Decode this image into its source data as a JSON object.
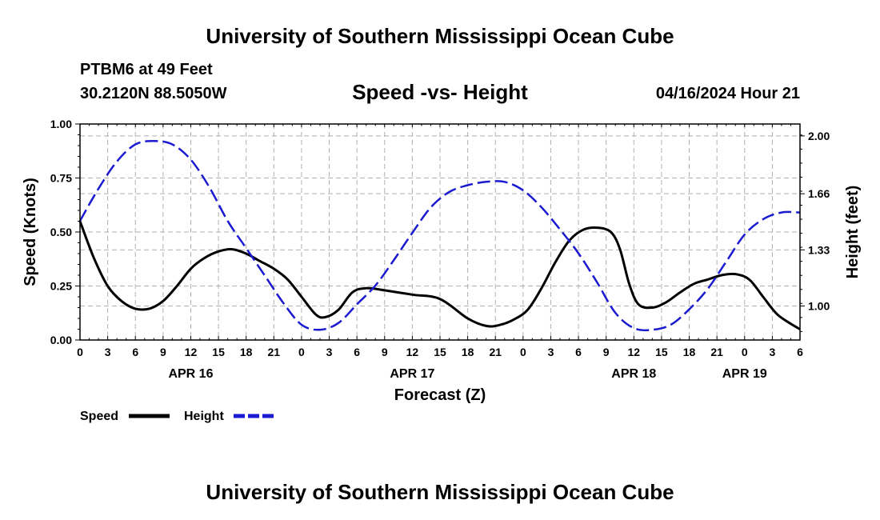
{
  "header": {
    "title": "University of Southern Mississippi Ocean Cube",
    "station": "PTBM6 at 49 Feet",
    "coordinates": "30.2120N  88.5050W",
    "subtitle": "Speed -vs- Height",
    "datestamp": "04/16/2024 Hour 21"
  },
  "footer": {
    "title": "University of Southern Mississippi Ocean Cube"
  },
  "colors": {
    "speed": "#000000",
    "height": "#1a1ad0",
    "grid": "#b0b0b0"
  },
  "chart_data": {
    "type": "line",
    "title": "Speed -vs- Height",
    "xlabel": "Forecast (Z)",
    "ylabel": "Speed (Knots)",
    "y2label": "Height (feet)",
    "x_hours_range": [
      0,
      78
    ],
    "ylim": [
      0,
      1
    ],
    "y2lim": [
      0.8,
      2.07
    ],
    "x_tick_labels": [
      "0",
      "3",
      "6",
      "9",
      "12",
      "15",
      "18",
      "21",
      "0",
      "3",
      "6",
      "9",
      "12",
      "15",
      "18",
      "21",
      "0",
      "3",
      "6",
      "9",
      "12",
      "15",
      "18",
      "21",
      "0",
      "3",
      "6"
    ],
    "date_labels": [
      {
        "label": "APR 16",
        "hour": 12
      },
      {
        "label": "APR 17",
        "hour": 36
      },
      {
        "label": "APR 18",
        "hour": 60
      },
      {
        "label": "APR 19",
        "hour": 72
      }
    ],
    "y_ticks": [
      0,
      0.25,
      0.5,
      0.75,
      1.0
    ],
    "y_tick_labels": [
      "0.00",
      "0.25",
      "0.50",
      "0.75",
      "1.00"
    ],
    "y2_ticks": [
      1.0,
      1.33,
      1.66,
      2.0
    ],
    "y2_tick_labels": [
      "1.00",
      "1.33",
      "1.66",
      "2.00"
    ],
    "grid": true,
    "legend_position": "bottom-left",
    "series": [
      {
        "name": "Speed",
        "axis": "left",
        "style": "solid",
        "x": [
          0,
          1.5,
          3,
          4.5,
          6,
          7.5,
          9,
          10.5,
          12,
          13.5,
          15,
          16.5,
          18,
          19.5,
          21,
          22.5,
          24,
          25.5,
          26.5,
          28,
          29.5,
          31,
          33,
          36,
          39,
          42,
          44,
          45.5,
          47,
          48.5,
          50,
          51.5,
          53,
          54.5,
          56,
          57.5,
          58.5,
          59.5,
          60.5,
          62,
          63.5,
          65,
          66.5,
          68,
          69.5,
          71,
          72.5,
          74,
          75.5,
          77,
          78
        ],
        "values": [
          0.55,
          0.38,
          0.25,
          0.18,
          0.145,
          0.145,
          0.18,
          0.25,
          0.33,
          0.38,
          0.41,
          0.42,
          0.4,
          0.365,
          0.33,
          0.28,
          0.2,
          0.12,
          0.105,
          0.14,
          0.22,
          0.24,
          0.23,
          0.21,
          0.19,
          0.1,
          0.065,
          0.07,
          0.095,
          0.14,
          0.24,
          0.36,
          0.46,
          0.51,
          0.52,
          0.5,
          0.42,
          0.26,
          0.165,
          0.15,
          0.175,
          0.22,
          0.26,
          0.28,
          0.3,
          0.305,
          0.28,
          0.2,
          0.12,
          0.075,
          0.05
        ]
      },
      {
        "name": "Height",
        "axis": "right",
        "style": "dashed",
        "x": [
          0,
          2,
          4,
          6,
          8,
          10,
          12,
          14,
          16,
          18,
          20,
          22,
          24,
          26,
          28,
          30,
          32,
          34,
          36,
          38,
          40,
          42,
          44,
          46,
          48,
          50,
          52,
          54,
          56,
          58,
          60,
          62,
          64,
          66,
          68,
          70,
          72,
          74,
          76,
          78
        ],
        "values": [
          1.5,
          1.69,
          1.85,
          1.95,
          1.97,
          1.95,
          1.86,
          1.7,
          1.5,
          1.34,
          1.18,
          1.02,
          0.89,
          0.86,
          0.9,
          1.01,
          1.12,
          1.27,
          1.43,
          1.58,
          1.67,
          1.71,
          1.73,
          1.73,
          1.68,
          1.58,
          1.45,
          1.31,
          1.14,
          0.96,
          0.87,
          0.86,
          0.89,
          0.98,
          1.1,
          1.26,
          1.42,
          1.51,
          1.55,
          1.55
        ]
      }
    ],
    "legend": [
      {
        "label": "Speed",
        "style": "solid"
      },
      {
        "label": "Height",
        "style": "dashed"
      }
    ]
  }
}
